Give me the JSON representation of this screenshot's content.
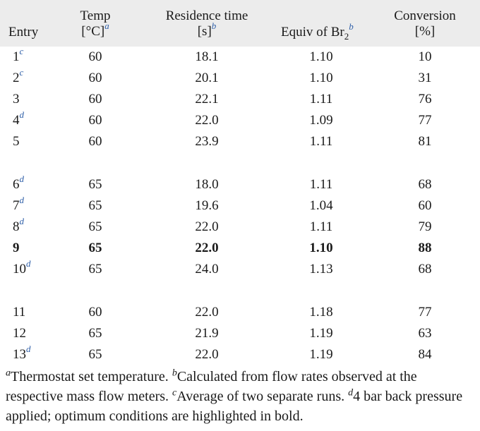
{
  "table": {
    "headers": {
      "entry": "Entry",
      "temp_line1": "Temp",
      "temp_line2": "[°C]",
      "temp_note": "a",
      "res_line1": "Residence time",
      "res_line2": "[s]",
      "res_note": "b",
      "equiv_text": "Equiv of Br",
      "equiv_sub": "2",
      "equiv_note": "b",
      "conv_line1": "Conversion",
      "conv_line2": "[%]"
    },
    "rows": [
      {
        "entry": "1",
        "note": "c",
        "temp": "60",
        "res": "18.1",
        "equiv": "1.10",
        "conv": "10",
        "bold": false
      },
      {
        "entry": "2",
        "note": "c",
        "temp": "60",
        "res": "20.1",
        "equiv": "1.10",
        "conv": "31",
        "bold": false
      },
      {
        "entry": "3",
        "note": "",
        "temp": "60",
        "res": "22.1",
        "equiv": "1.11",
        "conv": "76",
        "bold": false
      },
      {
        "entry": "4",
        "note": "d",
        "temp": "60",
        "res": "22.0",
        "equiv": "1.09",
        "conv": "77",
        "bold": false
      },
      {
        "entry": "5",
        "note": "",
        "temp": "60",
        "res": "23.9",
        "equiv": "1.11",
        "conv": "81",
        "bold": false
      },
      {
        "entry": "6",
        "note": "d",
        "temp": "65",
        "res": "18.0",
        "equiv": "1.11",
        "conv": "68",
        "bold": false
      },
      {
        "entry": "7",
        "note": "d",
        "temp": "65",
        "res": "19.6",
        "equiv": "1.04",
        "conv": "60",
        "bold": false
      },
      {
        "entry": "8",
        "note": "d",
        "temp": "65",
        "res": "22.0",
        "equiv": "1.11",
        "conv": "79",
        "bold": false
      },
      {
        "entry": "9",
        "note": "",
        "temp": "65",
        "res": "22.0",
        "equiv": "1.10",
        "conv": "88",
        "bold": true
      },
      {
        "entry": "10",
        "note": "d",
        "temp": "65",
        "res": "24.0",
        "equiv": "1.13",
        "conv": "68",
        "bold": false
      },
      {
        "entry": "11",
        "note": "",
        "temp": "60",
        "res": "22.0",
        "equiv": "1.18",
        "conv": "77",
        "bold": false
      },
      {
        "entry": "12",
        "note": "",
        "temp": "65",
        "res": "21.9",
        "equiv": "1.19",
        "conv": "63",
        "bold": false
      },
      {
        "entry": "13",
        "note": "d",
        "temp": "65",
        "res": "22.0",
        "equiv": "1.19",
        "conv": "84",
        "bold": false
      }
    ]
  },
  "footnotes": {
    "a_mark": "a",
    "a_text": "Thermostat set temperature. ",
    "b_mark": "b",
    "b_text": "Calculated from flow rates observed at the respective mass flow meters. ",
    "c_mark": "c",
    "c_text": "Average of two separate runs. ",
    "d_mark": "d",
    "d_text": "4 bar back pressure applied; optimum conditions are highlighted in bold."
  }
}
